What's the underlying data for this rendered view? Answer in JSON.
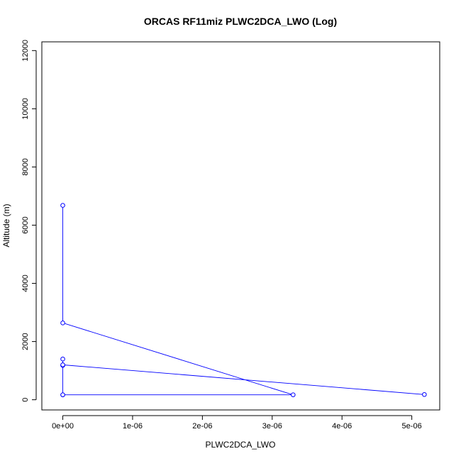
{
  "chart_data": {
    "type": "line",
    "title": "ORCAS RF11miz PLWC2DCA_LWO (Log)",
    "xlabel": "PLWC2DCA_LWO",
    "ylabel": "Altitude (m)",
    "xlim": [
      -3e-07,
      5.4e-06
    ],
    "ylim": [
      -350,
      12300
    ],
    "x_ticks": [
      0,
      1e-06,
      2e-06,
      3e-06,
      4e-06,
      5e-06
    ],
    "x_tick_labels": [
      "0e+00",
      "1e-06",
      "2e-06",
      "3e-06",
      "4e-06",
      "5e-06"
    ],
    "y_ticks": [
      0,
      2000,
      4000,
      6000,
      8000,
      10000,
      12000
    ],
    "y_tick_labels": [
      "0",
      "2000",
      "4000",
      "6000",
      "8000",
      "10000",
      "12000"
    ],
    "grid": false,
    "legend": "none",
    "series": [
      {
        "color": "#0000ff",
        "x": [
          0,
          0,
          3.3e-06,
          0,
          0,
          0,
          5.18e-06,
          0,
          0,
          0
        ],
        "y": [
          6680,
          2640,
          170,
          170,
          1180,
          1200,
          180,
          1200,
          1400,
          170
        ]
      }
    ]
  }
}
